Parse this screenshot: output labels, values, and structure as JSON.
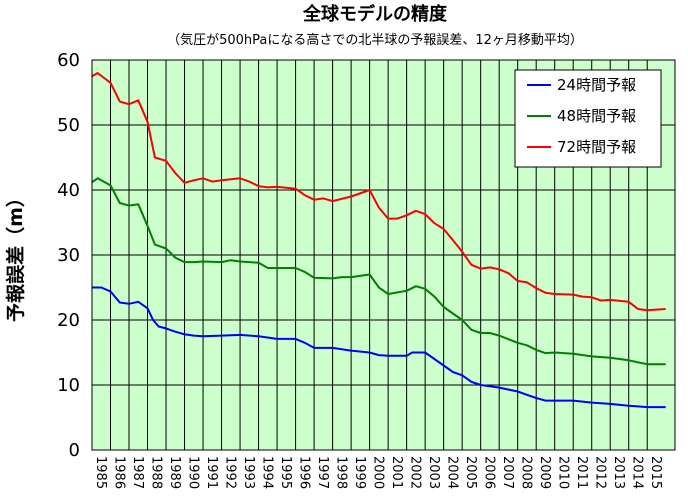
{
  "chart_data": {
    "type": "line",
    "title": "全球モデルの精度",
    "subtitle": "（気圧が500hPaになる高さでの北半球の予報誤差、12ヶ月移動平均）",
    "ylabel": "予報誤差（m）",
    "xlabel": "",
    "ylim": [
      0,
      60
    ],
    "yticks": [
      "0",
      "10",
      "20",
      "30",
      "40",
      "50",
      "60"
    ],
    "xlim": [
      1985,
      2016.5
    ],
    "xticks": [
      "1985",
      "1986",
      "1987",
      "1988",
      "1989",
      "1990",
      "1991",
      "1992",
      "1993",
      "1994",
      "1995",
      "1996",
      "1997",
      "1998",
      "1999",
      "2000",
      "2001",
      "2002",
      "2003",
      "2004",
      "2005",
      "2006",
      "2007",
      "2008",
      "2009",
      "2010",
      "2011",
      "2012",
      "2013",
      "2014",
      "2015"
    ],
    "grid": true,
    "legend_position": "top-right",
    "plot_background": "#ccffcc",
    "series": [
      {
        "name": "24時間予報",
        "color": "#0000ff",
        "points": [
          [
            1985.0,
            25.0
          ],
          [
            1985.5,
            25.0
          ],
          [
            1986.0,
            24.4
          ],
          [
            1986.5,
            22.7
          ],
          [
            1987.0,
            22.5
          ],
          [
            1987.5,
            22.8
          ],
          [
            1988.0,
            21.8
          ],
          [
            1988.3,
            20.0
          ],
          [
            1988.6,
            19.0
          ],
          [
            1989.0,
            18.7
          ],
          [
            1989.5,
            18.2
          ],
          [
            1990.0,
            17.8
          ],
          [
            1990.5,
            17.6
          ],
          [
            1991.0,
            17.5
          ],
          [
            1992.0,
            17.6
          ],
          [
            1993.0,
            17.7
          ],
          [
            1994.0,
            17.5
          ],
          [
            1995.0,
            17.1
          ],
          [
            1996.0,
            17.1
          ],
          [
            1996.5,
            16.5
          ],
          [
            1997.0,
            15.7
          ],
          [
            1998.0,
            15.7
          ],
          [
            1999.0,
            15.3
          ],
          [
            2000.0,
            15.0
          ],
          [
            2000.5,
            14.6
          ],
          [
            2001.0,
            14.5
          ],
          [
            2002.0,
            14.5
          ],
          [
            2002.3,
            15.0
          ],
          [
            2003.0,
            15.0
          ],
          [
            2003.5,
            14.0
          ],
          [
            2004.0,
            13.0
          ],
          [
            2004.5,
            12.0
          ],
          [
            2005.0,
            11.5
          ],
          [
            2005.5,
            10.5
          ],
          [
            2006.0,
            10.0
          ],
          [
            2006.5,
            9.8
          ],
          [
            2007.0,
            9.6
          ],
          [
            2008.0,
            9.0
          ],
          [
            2008.5,
            8.5
          ],
          [
            2009.0,
            8.0
          ],
          [
            2009.5,
            7.6
          ],
          [
            2010.0,
            7.6
          ],
          [
            2011.0,
            7.6
          ],
          [
            2012.0,
            7.3
          ],
          [
            2013.0,
            7.1
          ],
          [
            2014.0,
            6.8
          ],
          [
            2014.5,
            6.7
          ],
          [
            2015.0,
            6.6
          ],
          [
            2016.0,
            6.6
          ]
        ]
      },
      {
        "name": "48時間予報",
        "color": "#008000",
        "points": [
          [
            1985.0,
            41.2
          ],
          [
            1985.3,
            41.8
          ],
          [
            1986.0,
            40.7
          ],
          [
            1986.5,
            38.0
          ],
          [
            1987.0,
            37.6
          ],
          [
            1987.5,
            37.8
          ],
          [
            1988.0,
            34.5
          ],
          [
            1988.4,
            31.6
          ],
          [
            1989.0,
            31.0
          ],
          [
            1989.5,
            29.6
          ],
          [
            1990.0,
            28.9
          ],
          [
            1990.5,
            28.9
          ],
          [
            1991.0,
            29.0
          ],
          [
            1992.0,
            28.9
          ],
          [
            1992.5,
            29.2
          ],
          [
            1993.0,
            29.0
          ],
          [
            1994.0,
            28.8
          ],
          [
            1994.5,
            28.0
          ],
          [
            1995.0,
            28.0
          ],
          [
            1996.0,
            28.0
          ],
          [
            1996.5,
            27.4
          ],
          [
            1997.0,
            26.5
          ],
          [
            1998.0,
            26.4
          ],
          [
            1998.5,
            26.6
          ],
          [
            1999.0,
            26.6
          ],
          [
            2000.0,
            27.0
          ],
          [
            2000.5,
            25.0
          ],
          [
            2001.0,
            24.0
          ],
          [
            2002.0,
            24.5
          ],
          [
            2002.5,
            25.2
          ],
          [
            2003.0,
            24.8
          ],
          [
            2003.5,
            23.6
          ],
          [
            2004.0,
            22.0
          ],
          [
            2004.5,
            21.0
          ],
          [
            2005.0,
            20.0
          ],
          [
            2005.5,
            18.5
          ],
          [
            2006.0,
            18.0
          ],
          [
            2006.5,
            18.0
          ],
          [
            2007.0,
            17.6
          ],
          [
            2008.0,
            16.5
          ],
          [
            2008.5,
            16.1
          ],
          [
            2009.0,
            15.4
          ],
          [
            2009.5,
            14.9
          ],
          [
            2010.0,
            15.0
          ],
          [
            2011.0,
            14.8
          ],
          [
            2012.0,
            14.4
          ],
          [
            2013.0,
            14.2
          ],
          [
            2014.0,
            13.8
          ],
          [
            2014.5,
            13.5
          ],
          [
            2015.0,
            13.2
          ],
          [
            2016.0,
            13.2
          ]
        ]
      },
      {
        "name": "72時間予報",
        "color": "#ff0000",
        "points": [
          [
            1985.0,
            57.5
          ],
          [
            1985.3,
            58.0
          ],
          [
            1986.0,
            56.5
          ],
          [
            1986.5,
            53.6
          ],
          [
            1987.0,
            53.2
          ],
          [
            1987.5,
            53.8
          ],
          [
            1988.0,
            50.5
          ],
          [
            1988.4,
            45.0
          ],
          [
            1989.0,
            44.5
          ],
          [
            1989.5,
            42.6
          ],
          [
            1990.0,
            41.1
          ],
          [
            1990.5,
            41.5
          ],
          [
            1991.0,
            41.8
          ],
          [
            1991.5,
            41.3
          ],
          [
            1992.0,
            41.5
          ],
          [
            1993.0,
            41.8
          ],
          [
            1993.5,
            41.3
          ],
          [
            1994.0,
            40.6
          ],
          [
            1994.5,
            40.4
          ],
          [
            1995.0,
            40.5
          ],
          [
            1996.0,
            40.2
          ],
          [
            1996.5,
            39.2
          ],
          [
            1997.0,
            38.5
          ],
          [
            1997.5,
            38.7
          ],
          [
            1998.0,
            38.3
          ],
          [
            1999.0,
            39.0
          ],
          [
            2000.0,
            40.0
          ],
          [
            2000.5,
            37.3
          ],
          [
            2001.0,
            35.6
          ],
          [
            2001.5,
            35.6
          ],
          [
            2002.0,
            36.1
          ],
          [
            2002.5,
            36.8
          ],
          [
            2003.0,
            36.3
          ],
          [
            2003.5,
            34.9
          ],
          [
            2004.0,
            34.0
          ],
          [
            2004.5,
            32.3
          ],
          [
            2005.0,
            30.5
          ],
          [
            2005.5,
            28.5
          ],
          [
            2006.0,
            27.9
          ],
          [
            2006.5,
            28.1
          ],
          [
            2007.0,
            27.8
          ],
          [
            2007.5,
            27.2
          ],
          [
            2008.0,
            26.0
          ],
          [
            2008.5,
            25.8
          ],
          [
            2009.0,
            24.9
          ],
          [
            2009.5,
            24.2
          ],
          [
            2010.0,
            24.0
          ],
          [
            2011.0,
            23.9
          ],
          [
            2011.5,
            23.6
          ],
          [
            2012.0,
            23.5
          ],
          [
            2012.5,
            23.0
          ],
          [
            2013.0,
            23.1
          ],
          [
            2014.0,
            22.8
          ],
          [
            2014.5,
            21.7
          ],
          [
            2015.0,
            21.5
          ],
          [
            2016.0,
            21.7
          ]
        ]
      }
    ]
  }
}
